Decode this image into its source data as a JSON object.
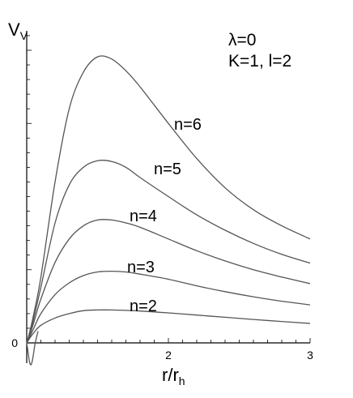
{
  "chart_data": {
    "type": "line",
    "ylabel": "V",
    "ylabel_sub": "V",
    "xlabel": "r/r",
    "xlabel_sub": "h",
    "annotations": [
      "λ=0",
      "K=1, l=2"
    ],
    "xlim": [
      1,
      3
    ],
    "ylim": [
      -0.2,
      2.25
    ],
    "x_ticks": [
      2,
      3
    ],
    "y_ticks": [
      0
    ],
    "y_tick_labels": [
      "0"
    ],
    "origin_x_label": "",
    "series": [
      {
        "name": "n=2",
        "x": [
          1.0,
          1.02,
          1.05,
          1.1,
          1.2,
          1.3,
          1.4,
          1.5,
          1.6,
          1.7,
          1.8,
          2.0,
          2.2,
          2.4,
          2.6,
          2.8,
          3.0
        ],
        "values": [
          0.0,
          0.03,
          0.07,
          0.12,
          0.17,
          0.2,
          0.22,
          0.225,
          0.225,
          0.222,
          0.218,
          0.205,
          0.19,
          0.175,
          0.16,
          0.146,
          0.133
        ]
      },
      {
        "name": "n=3",
        "x": [
          1.0,
          1.02,
          1.05,
          1.1,
          1.2,
          1.3,
          1.4,
          1.5,
          1.6,
          1.7,
          1.8,
          2.0,
          2.2,
          2.4,
          2.6,
          2.8,
          3.0
        ],
        "values": [
          0.0,
          0.04,
          0.1,
          0.2,
          0.33,
          0.41,
          0.46,
          0.485,
          0.49,
          0.485,
          0.47,
          0.435,
          0.39,
          0.35,
          0.315,
          0.285,
          0.26
        ]
      },
      {
        "name": "n=4",
        "x": [
          1.0,
          1.02,
          1.05,
          1.1,
          1.2,
          1.3,
          1.4,
          1.5,
          1.6,
          1.7,
          1.8,
          2.0,
          2.2,
          2.4,
          2.6,
          2.8,
          3.0
        ],
        "values": [
          0.0,
          0.05,
          0.14,
          0.3,
          0.55,
          0.71,
          0.8,
          0.84,
          0.84,
          0.82,
          0.79,
          0.71,
          0.63,
          0.56,
          0.5,
          0.45,
          0.405
        ]
      },
      {
        "name": "n=5",
        "x": [
          1.0,
          1.02,
          1.05,
          1.1,
          1.2,
          1.3,
          1.4,
          1.5,
          1.6,
          1.7,
          1.8,
          2.0,
          2.2,
          2.4,
          2.6,
          2.8,
          3.0
        ],
        "values": [
          0.0,
          0.06,
          0.17,
          0.38,
          0.82,
          1.08,
          1.2,
          1.245,
          1.24,
          1.2,
          1.13,
          1.0,
          0.875,
          0.77,
          0.68,
          0.605,
          0.545
        ]
      },
      {
        "name": "n=6",
        "x": [
          1.0,
          1.02,
          1.05,
          1.1,
          1.2,
          1.3,
          1.4,
          1.5,
          1.6,
          1.7,
          1.8,
          2.0,
          2.2,
          2.4,
          2.6,
          2.8,
          3.0
        ],
        "values": [
          0.0,
          0.07,
          0.2,
          0.45,
          1.1,
          1.6,
          1.85,
          1.955,
          1.94,
          1.86,
          1.75,
          1.5,
          1.26,
          1.06,
          0.91,
          0.8,
          0.71
        ]
      }
    ],
    "dip": {
      "x": [
        1.0,
        1.01,
        1.02,
        1.03,
        1.04,
        1.05,
        1.06,
        1.08
      ],
      "values": [
        0.0,
        -0.07,
        -0.13,
        -0.15,
        -0.12,
        -0.06,
        0.0,
        0.08
      ]
    },
    "grid": false,
    "legend": "inline labels near curves"
  }
}
